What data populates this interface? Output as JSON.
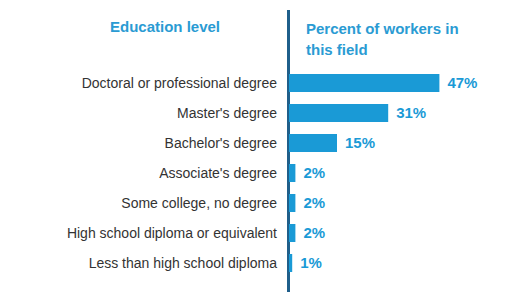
{
  "chart_data": {
    "type": "bar",
    "orientation": "horizontal",
    "ylabel": "Education level",
    "xlabel": "Percent of workers in this field",
    "categories": [
      "Doctoral or professional degree",
      "Master's degree",
      "Bachelor's degree",
      "Associate's degree",
      "Some college, no degree",
      "High school diploma or equivalent",
      "Less than high school diploma"
    ],
    "values": [
      47,
      31,
      15,
      2,
      2,
      2,
      1
    ],
    "value_labels": [
      "47%",
      "31%",
      "15%",
      "2%",
      "2%",
      "2%",
      "1%"
    ],
    "data_labels": true,
    "tick_labels": "y",
    "color": "#1a9ad6",
    "xlim": [
      0,
      70
    ]
  }
}
